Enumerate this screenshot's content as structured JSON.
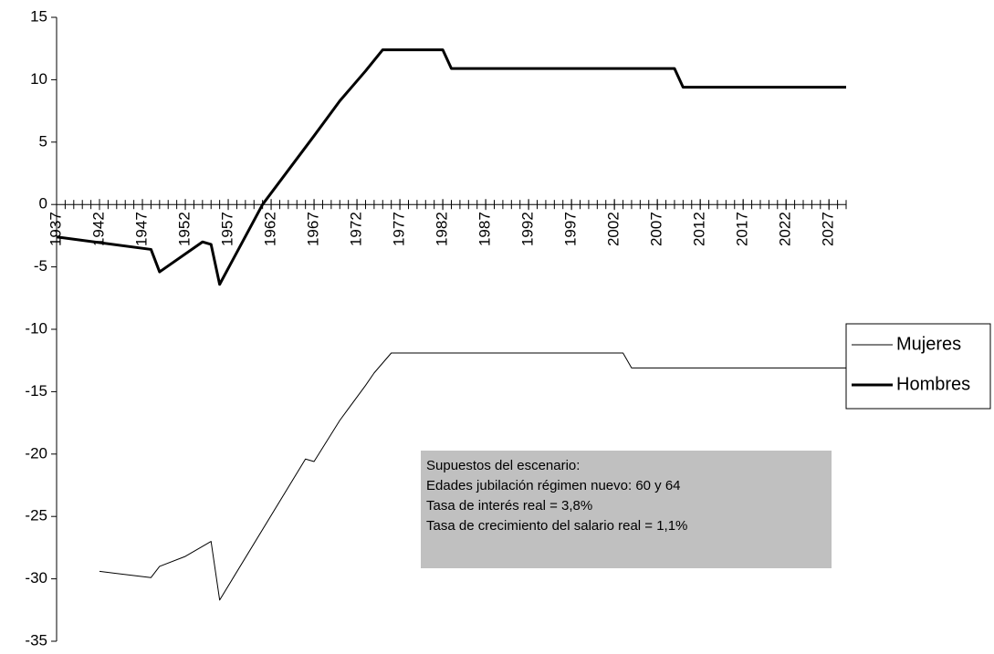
{
  "chart_data": {
    "type": "line",
    "series": [
      {
        "name": "Mujeres",
        "color": "#000000",
        "width": 1,
        "x": [
          1942,
          1948,
          1949,
          1952,
          1955,
          1956,
          1966,
          1967,
          1970,
          1973,
          1974,
          1976,
          2003,
          2004,
          2029
        ],
        "values": [
          -29.4,
          -29.9,
          -29.0,
          -28.2,
          -27.0,
          -31.7,
          -20.4,
          -20.6,
          -17.3,
          -14.5,
          -13.5,
          -11.9,
          -11.9,
          -13.1,
          -13.1
        ]
      },
      {
        "name": "Hombres",
        "color": "#000000",
        "width": 3,
        "x": [
          1937,
          1948,
          1949,
          1954,
          1955,
          1956,
          1961,
          1967,
          1970,
          1973,
          1975,
          1982,
          1983,
          2009,
          2010,
          2029
        ],
        "values": [
          -2.6,
          -3.6,
          -5.4,
          -3.0,
          -3.2,
          -6.4,
          0,
          5.5,
          8.3,
          10.7,
          12.4,
          12.4,
          10.9,
          10.9,
          9.4,
          9.4
        ]
      }
    ],
    "xlim": [
      1937,
      2029
    ],
    "xticks": [
      1937,
      1942,
      1947,
      1952,
      1957,
      1962,
      1967,
      1972,
      1977,
      1982,
      1987,
      1992,
      1997,
      2002,
      2007,
      2012,
      2017,
      2022,
      2027
    ],
    "minor_tick_interval": 1,
    "ylim": [
      -35,
      15
    ],
    "yticks": [
      -35,
      -30,
      -25,
      -20,
      -15,
      -10,
      -5,
      0,
      5,
      10,
      15
    ],
    "legend": "right",
    "annotation": {
      "lines": [
        "Supuestos del escenario:",
        "Edades jubilación régimen nuevo:  60  y 64",
        "Tasa de interés real  = 3,8%",
        "Tasa de crecimiento del salario real = 1,1%"
      ],
      "color": "#c0c0c0"
    }
  }
}
